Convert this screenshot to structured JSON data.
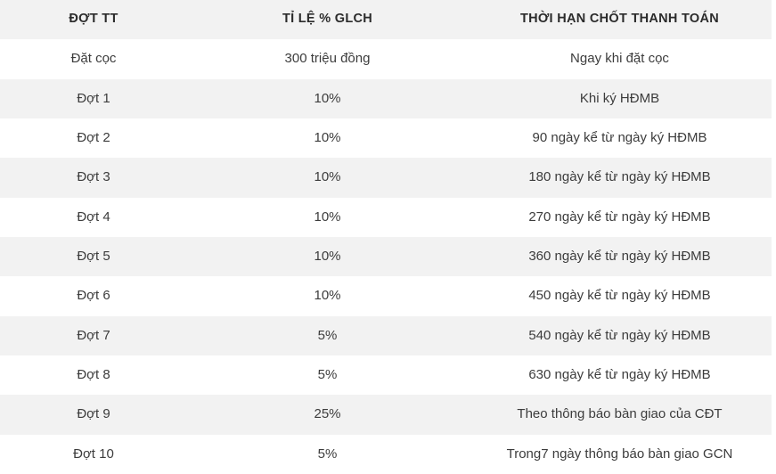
{
  "colors": {
    "stripe_bg": "#f2f2f2",
    "row_bg": "#ffffff",
    "header_text": "#2b2b2b",
    "body_text": "#3c3c3c"
  },
  "chart_data": {
    "type": "table",
    "title": "",
    "columns": [
      "ĐỢT TT",
      "TỈ LỆ % GLCH",
      "THỜI HẠN CHỐT THANH TOÁN"
    ],
    "rows": [
      {
        "stage": "Đặt cọc",
        "rate": "300 triệu đồng",
        "deadline": "Ngay khi đặt cọc"
      },
      {
        "stage": "Đợt 1",
        "rate": "10%",
        "deadline": "Khi ký HĐMB"
      },
      {
        "stage": "Đợt 2",
        "rate": "10%",
        "deadline": "90 ngày kể từ ngày ký HĐMB"
      },
      {
        "stage": "Đợt 3",
        "rate": "10%",
        "deadline": "180 ngày kể từ ngày ký HĐMB"
      },
      {
        "stage": "Đợt 4",
        "rate": "10%",
        "deadline": "270 ngày kể từ ngày ký HĐMB"
      },
      {
        "stage": "Đợt 5",
        "rate": "10%",
        "deadline": "360 ngày kể từ ngày ký HĐMB"
      },
      {
        "stage": "Đợt 6",
        "rate": "10%",
        "deadline": "450 ngày kể từ ngày ký HĐMB"
      },
      {
        "stage": "Đợt 7",
        "rate": "5%",
        "deadline": "540 ngày kể từ ngày ký HĐMB"
      },
      {
        "stage": "Đợt 8",
        "rate": "5%",
        "deadline": "630 ngày kể từ ngày ký HĐMB"
      },
      {
        "stage": "Đợt 9",
        "rate": "25%",
        "deadline": "Theo thông báo bàn giao của CĐT"
      },
      {
        "stage": "Đợt 10",
        "rate": "5%",
        "deadline": "Trong7 ngày thông báo bàn giao GCN"
      }
    ]
  }
}
